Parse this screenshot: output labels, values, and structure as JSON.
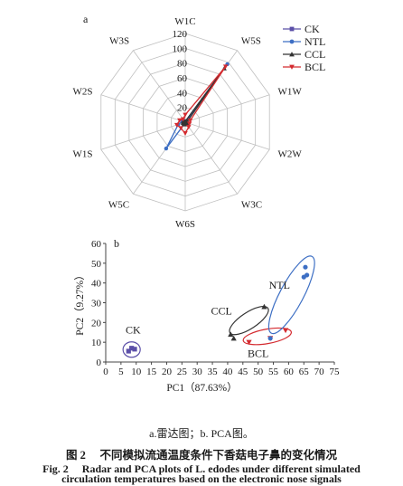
{
  "chart_data": [
    {
      "type": "radar",
      "panel_label": "a",
      "axes": [
        "W1C",
        "W5S",
        "W1W",
        "W2W",
        "W3C",
        "W6S",
        "W5C",
        "W1S",
        "W2S",
        "W3S"
      ],
      "rticks": [
        "0",
        "20",
        "40",
        "60",
        "80",
        "100",
        "120"
      ],
      "rlim": [
        0,
        120
      ],
      "legend_position": "top-right",
      "series": [
        {
          "name": "CK",
          "color": "#5b4fa8",
          "marker": "square",
          "values": [
            1,
            1.5,
            1,
            1,
            1,
            1,
            1,
            1,
            1,
            1
          ]
        },
        {
          "name": "NTL",
          "color": "#3d6fc4",
          "marker": "circle",
          "values": [
            1,
            97,
            1,
            1,
            1,
            1,
            44,
            10,
            4,
            1
          ]
        },
        {
          "name": "CCL",
          "color": "#333333",
          "marker": "triangle",
          "values": [
            1,
            90,
            3,
            3,
            3,
            3,
            3,
            3,
            3,
            1
          ]
        },
        {
          "name": "BCL",
          "color": "#d42a2f",
          "marker": "triangle-down",
          "values": [
            10,
            93,
            7,
            6,
            8,
            15,
            10,
            12,
            8,
            5
          ]
        }
      ]
    },
    {
      "type": "scatter",
      "panel_label": "b",
      "xlabel": "PC1（87.63%）",
      "ylabel": "PC2（9.27%）",
      "xlim": [
        0,
        75
      ],
      "ylim": [
        0,
        60
      ],
      "xticks": [
        "0",
        "5",
        "10",
        "15",
        "20",
        "25",
        "30",
        "35",
        "40",
        "45",
        "50",
        "55",
        "60",
        "65",
        "70",
        "75"
      ],
      "yticks": [
        "0",
        "10",
        "20",
        "30",
        "40",
        "50",
        "60"
      ],
      "series": [
        {
          "name": "CK",
          "color": "#5b4fa8",
          "marker": "square",
          "points": [
            [
              7.5,
              5.5
            ],
            [
              8.5,
              7
            ],
            [
              9.5,
              6.5
            ]
          ]
        },
        {
          "name": "CCL",
          "color": "#333333",
          "marker": "triangle",
          "points": [
            [
              41,
              14
            ],
            [
              42,
              12
            ],
            [
              52,
              28
            ]
          ]
        },
        {
          "name": "BCL",
          "color": "#d42a2f",
          "marker": "triangle-down",
          "points": [
            [
              47,
              10
            ],
            [
              54,
              12
            ],
            [
              59,
              16
            ]
          ]
        },
        {
          "name": "NTL",
          "color": "#3d6fc4",
          "marker": "circle",
          "points": [
            [
              54,
              12
            ],
            [
              65,
              43
            ],
            [
              65.5,
              48
            ],
            [
              66,
              44
            ]
          ]
        }
      ]
    }
  ],
  "caption": {
    "sub": "a.雷达图；b. PCA图。",
    "cn": "图 2　 不同模拟流通温度条件下香菇电子鼻的变化情况",
    "en_line1": "Fig. 2　 Radar and PCA plots of L. edodes under different simulated",
    "en_line2": "circulation temperatures based on the electronic nose signals"
  }
}
